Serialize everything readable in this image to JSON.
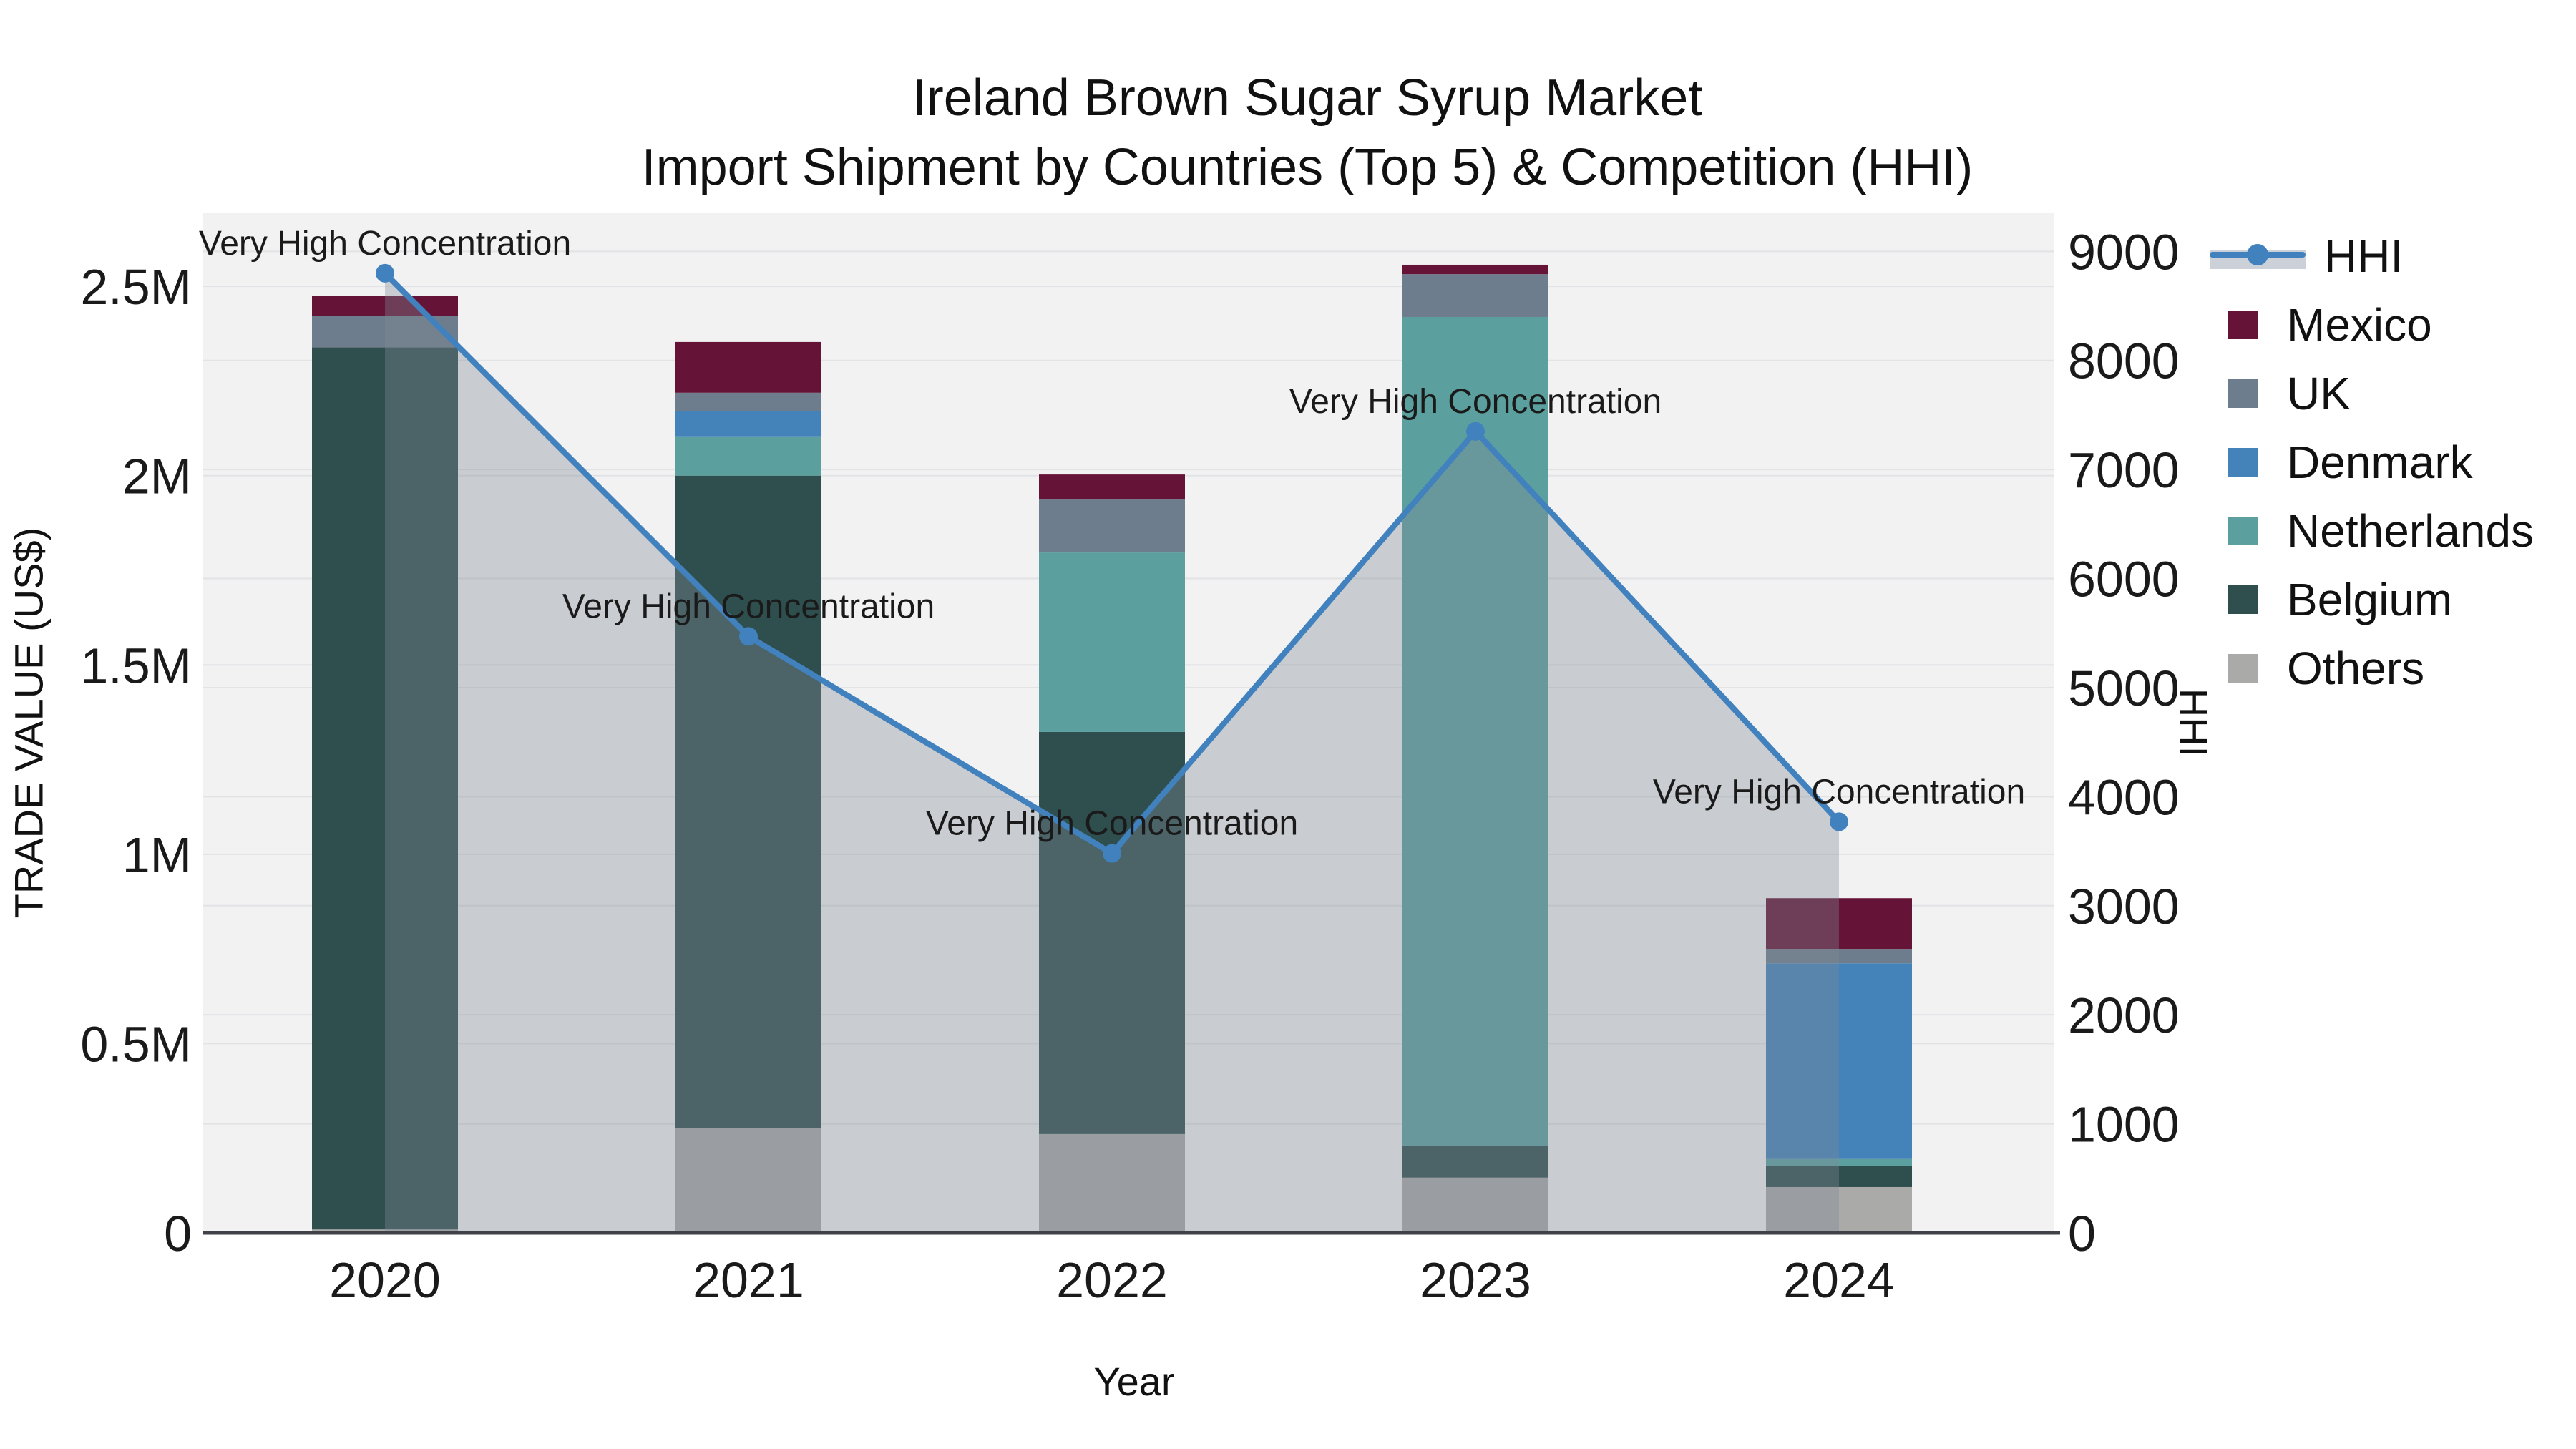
{
  "title": {
    "line1": "Ireland Brown Sugar Syrup Market",
    "line2": "Import Shipment by Countries (Top 5) & Competition (HHI)"
  },
  "axes": {
    "y_left_title": "TRADE VALUE (US$)",
    "y_right_title": "HHI",
    "x_title": "Year"
  },
  "legend": {
    "items": [
      {
        "label": "HHI",
        "type": "line",
        "color": "#4181bd",
        "band_color": "#ccd1d9"
      },
      {
        "label": "Mexico",
        "type": "swatch",
        "color": "#651337"
      },
      {
        "label": "UK",
        "type": "swatch",
        "color": "#6e7d8d"
      },
      {
        "label": "Denmark",
        "type": "swatch",
        "color": "#4483ba"
      },
      {
        "label": "Netherlands",
        "type": "swatch",
        "color": "#5ba09f"
      },
      {
        "label": "Belgium",
        "type": "swatch",
        "color": "#2f4e4e"
      },
      {
        "label": "Others",
        "type": "swatch",
        "color": "#aaaaa9"
      }
    ]
  },
  "colors": {
    "figure_bg": "#ffffff",
    "plot_bg": "#f2f2f3",
    "gridline": "#e2e3e5",
    "axis_line": "#3f4347",
    "text": "#1a1a1a",
    "hhi_line": "#4181bd",
    "hhi_area_fill": "rgba(128,138,150,0.36)"
  },
  "chart_data": {
    "type": "bar",
    "subtype": "stacked-bar-with-line",
    "title": "Ireland Brown Sugar Syrup Market — Import Shipment by Countries (Top 5) & Competition (HHI)",
    "xlabel": "Year",
    "ylabel": "TRADE VALUE (US$)",
    "y2label": "HHI",
    "grid": true,
    "legend_position": "right",
    "categories": [
      "2020",
      "2021",
      "2022",
      "2023",
      "2024"
    ],
    "series": [
      {
        "name": "Mexico",
        "color": "#651337",
        "values": [
          54000,
          134000,
          66000,
          25000,
          134000
        ]
      },
      {
        "name": "UK",
        "color": "#6e7d8d",
        "values": [
          82000,
          49000,
          140000,
          113000,
          38000
        ]
      },
      {
        "name": "Denmark",
        "color": "#4483ba",
        "values": [
          0,
          68000,
          0,
          0,
          517000
        ]
      },
      {
        "name": "Netherlands",
        "color": "#5ba09f",
        "values": [
          0,
          102000,
          474000,
          2190000,
          19000
        ]
      },
      {
        "name": "Belgium",
        "color": "#2f4e4e",
        "values": [
          2330000,
          1724000,
          1062000,
          83000,
          55000
        ]
      },
      {
        "name": "Others",
        "color": "#aaaaa9",
        "values": [
          9000,
          276000,
          261000,
          146000,
          121000
        ]
      }
    ],
    "stack_order": [
      "Others",
      "Belgium",
      "Netherlands",
      "Denmark",
      "UK",
      "Mexico"
    ],
    "bar_totals": [
      2475000,
      2353000,
      2003000,
      2557000,
      884000
    ],
    "line_series": {
      "name": "HHI",
      "axis": "right",
      "color": "#4181bd",
      "area_fill": "rgba(128,138,150,0.36)",
      "values": [
        8800,
        5470,
        3480,
        7350,
        3770
      ]
    },
    "annotations": [
      {
        "x": "2020",
        "text": "Very High Concentration"
      },
      {
        "x": "2021",
        "text": "Very High Concentration"
      },
      {
        "x": "2022",
        "text": "Very High Concentration"
      },
      {
        "x": "2023",
        "text": "Very High Concentration"
      },
      {
        "x": "2024",
        "text": "Very High Concentration"
      }
    ],
    "y_left": {
      "max": 2693000,
      "ticks": [
        {
          "v": 0,
          "t": "0"
        },
        {
          "v": 500000,
          "t": "0.5M"
        },
        {
          "v": 1000000,
          "t": "1M"
        },
        {
          "v": 1500000,
          "t": "1.5M"
        },
        {
          "v": 2000000,
          "t": "2M"
        },
        {
          "v": 2500000,
          "t": "2.5M"
        }
      ]
    },
    "y_right": {
      "max": 9350,
      "ticks": [
        {
          "v": 0,
          "t": "0"
        },
        {
          "v": 1000,
          "t": "1000"
        },
        {
          "v": 2000,
          "t": "2000"
        },
        {
          "v": 3000,
          "t": "3000"
        },
        {
          "v": 4000,
          "t": "4000"
        },
        {
          "v": 5000,
          "t": "5000"
        },
        {
          "v": 6000,
          "t": "6000"
        },
        {
          "v": 7000,
          "t": "7000"
        },
        {
          "v": 8000,
          "t": "8000"
        },
        {
          "v": 9000,
          "t": "9000"
        }
      ]
    }
  }
}
